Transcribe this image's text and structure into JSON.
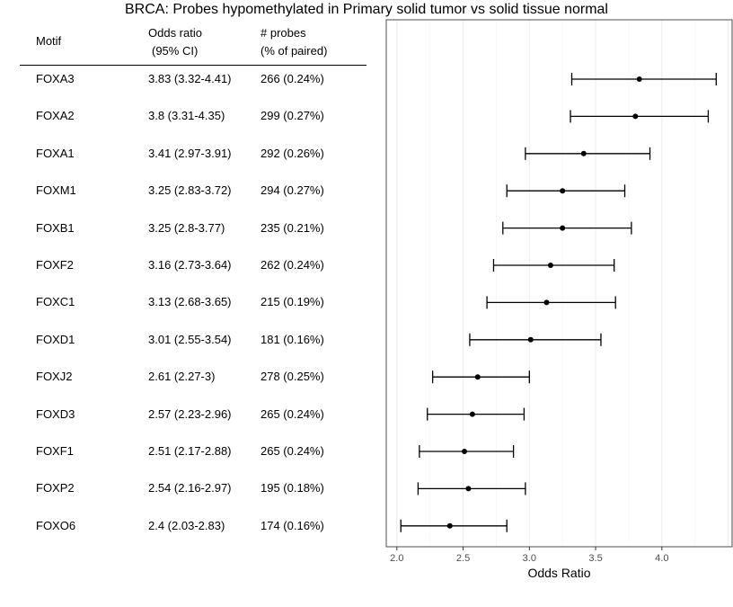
{
  "chart_data": {
    "type": "forest",
    "title": "BRCA: Probes hypomethylated in Primary solid tumor vs solid tissue normal",
    "table_headers": {
      "motif": "Motif",
      "odds_ratio_line1": "Odds ratio",
      "odds_ratio_line2": "(95% CI)",
      "probes_line1": "# probes",
      "probes_line2": "(% of paired)"
    },
    "rows": [
      {
        "motif": "FOXA3",
        "or_text": "3.83 (3.32-4.41)",
        "probes_text": "266 (0.24%)",
        "or": 3.83,
        "lower": 3.32,
        "upper": 4.41
      },
      {
        "motif": "FOXA2",
        "or_text": "3.8 (3.31-4.35)",
        "probes_text": "299 (0.27%)",
        "or": 3.8,
        "lower": 3.31,
        "upper": 4.35
      },
      {
        "motif": "FOXA1",
        "or_text": "3.41 (2.97-3.91)",
        "probes_text": "292 (0.26%)",
        "or": 3.41,
        "lower": 2.97,
        "upper": 3.91
      },
      {
        "motif": "FOXM1",
        "or_text": "3.25 (2.83-3.72)",
        "probes_text": "294 (0.27%)",
        "or": 3.25,
        "lower": 2.83,
        "upper": 3.72
      },
      {
        "motif": "FOXB1",
        "or_text": "3.25 (2.8-3.77)",
        "probes_text": "235 (0.21%)",
        "or": 3.25,
        "lower": 2.8,
        "upper": 3.77
      },
      {
        "motif": "FOXF2",
        "or_text": "3.16 (2.73-3.64)",
        "probes_text": "262 (0.24%)",
        "or": 3.16,
        "lower": 2.73,
        "upper": 3.64
      },
      {
        "motif": "FOXC1",
        "or_text": "3.13 (2.68-3.65)",
        "probes_text": "215 (0.19%)",
        "or": 3.13,
        "lower": 2.68,
        "upper": 3.65
      },
      {
        "motif": "FOXD1",
        "or_text": "3.01 (2.55-3.54)",
        "probes_text": "181 (0.16%)",
        "or": 3.01,
        "lower": 2.55,
        "upper": 3.54
      },
      {
        "motif": "FOXJ2",
        "or_text": "2.61 (2.27-3)",
        "probes_text": "278 (0.25%)",
        "or": 2.61,
        "lower": 2.27,
        "upper": 3.0
      },
      {
        "motif": "FOXD3",
        "or_text": "2.57 (2.23-2.96)",
        "probes_text": "265 (0.24%)",
        "or": 2.57,
        "lower": 2.23,
        "upper": 2.96
      },
      {
        "motif": "FOXF1",
        "or_text": "2.51 (2.17-2.88)",
        "probes_text": "265 (0.24%)",
        "or": 2.51,
        "lower": 2.17,
        "upper": 2.88
      },
      {
        "motif": "FOXP2",
        "or_text": "2.54 (2.16-2.97)",
        "probes_text": "195 (0.18%)",
        "or": 2.54,
        "lower": 2.16,
        "upper": 2.97
      },
      {
        "motif": "FOXO6",
        "or_text": "2.4 (2.03-2.83)",
        "probes_text": "174 (0.16%)",
        "or": 2.4,
        "lower": 2.03,
        "upper": 2.83
      }
    ],
    "xlabel": "Odds Ratio",
    "xticks": [
      "2.0",
      "2.5",
      "3.0",
      "3.5",
      "4.0"
    ],
    "xlim": [
      1.92,
      4.53
    ],
    "grid": true
  }
}
